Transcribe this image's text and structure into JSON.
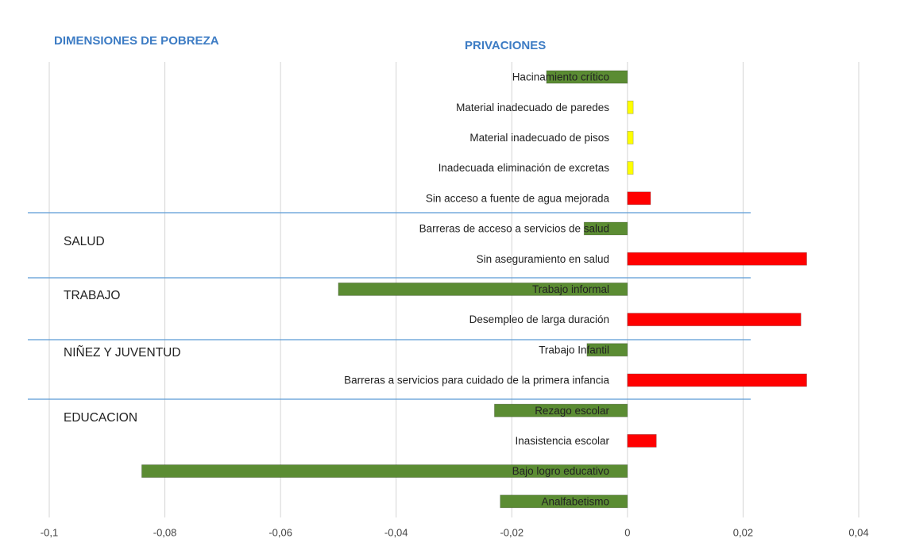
{
  "chart_data": {
    "type": "hbar",
    "title": "PRIVACIONES",
    "dimension_title": "DIMENSIONES DE POBREZA",
    "groups": [
      "SALUD",
      "TRABAJO",
      "NIÑEZ Y JUVENTUD",
      "EDUCACION"
    ],
    "categories": [
      "Hacinamiento crítico",
      "Material inadecuado de paredes",
      "Material inadecuado de pisos",
      "Inadecuada eliminación de excretas",
      "Sin acceso a fuente de agua mejorada",
      "Barreras de acceso a servicios de salud",
      "Sin aseguramiento en salud",
      "Trabajo informal",
      "Desempleo de larga duración",
      "Trabajo Infantil",
      "Barreras a servicios para cuidado de la primera infancia",
      "Rezago escolar",
      "Inasistencia escolar",
      "Bajo logro educativo",
      "Analfabetismo"
    ],
    "values": [
      -0.014,
      0.001,
      0.001,
      0.001,
      0.004,
      -0.0075,
      0.031,
      -0.05,
      0.03,
      -0.007,
      0.031,
      -0.023,
      0.005,
      -0.084,
      -0.022
    ],
    "colors": [
      "#5b8c33",
      "#ffff00",
      "#ffff00",
      "#ffff00",
      "#ff0000",
      "#5b8c33",
      "#ff0000",
      "#5b8c33",
      "#ff0000",
      "#5b8c33",
      "#ff0000",
      "#5b8c33",
      "#ff0000",
      "#5b8c33",
      "#5b8c33"
    ],
    "xlim": [
      -0.1,
      0.04
    ],
    "xticks": [
      {
        "value": -0.1,
        "label": "-0,1"
      },
      {
        "value": -0.08,
        "label": "-0,08"
      },
      {
        "value": -0.06,
        "label": "-0,06"
      },
      {
        "value": -0.04,
        "label": "-0,04"
      },
      {
        "value": -0.02,
        "label": "-0,02"
      },
      0,
      {
        "value": 0.02,
        "label": "0,02"
      },
      {
        "value": 0.04,
        "label": "0,04"
      }
    ],
    "grid": true
  }
}
